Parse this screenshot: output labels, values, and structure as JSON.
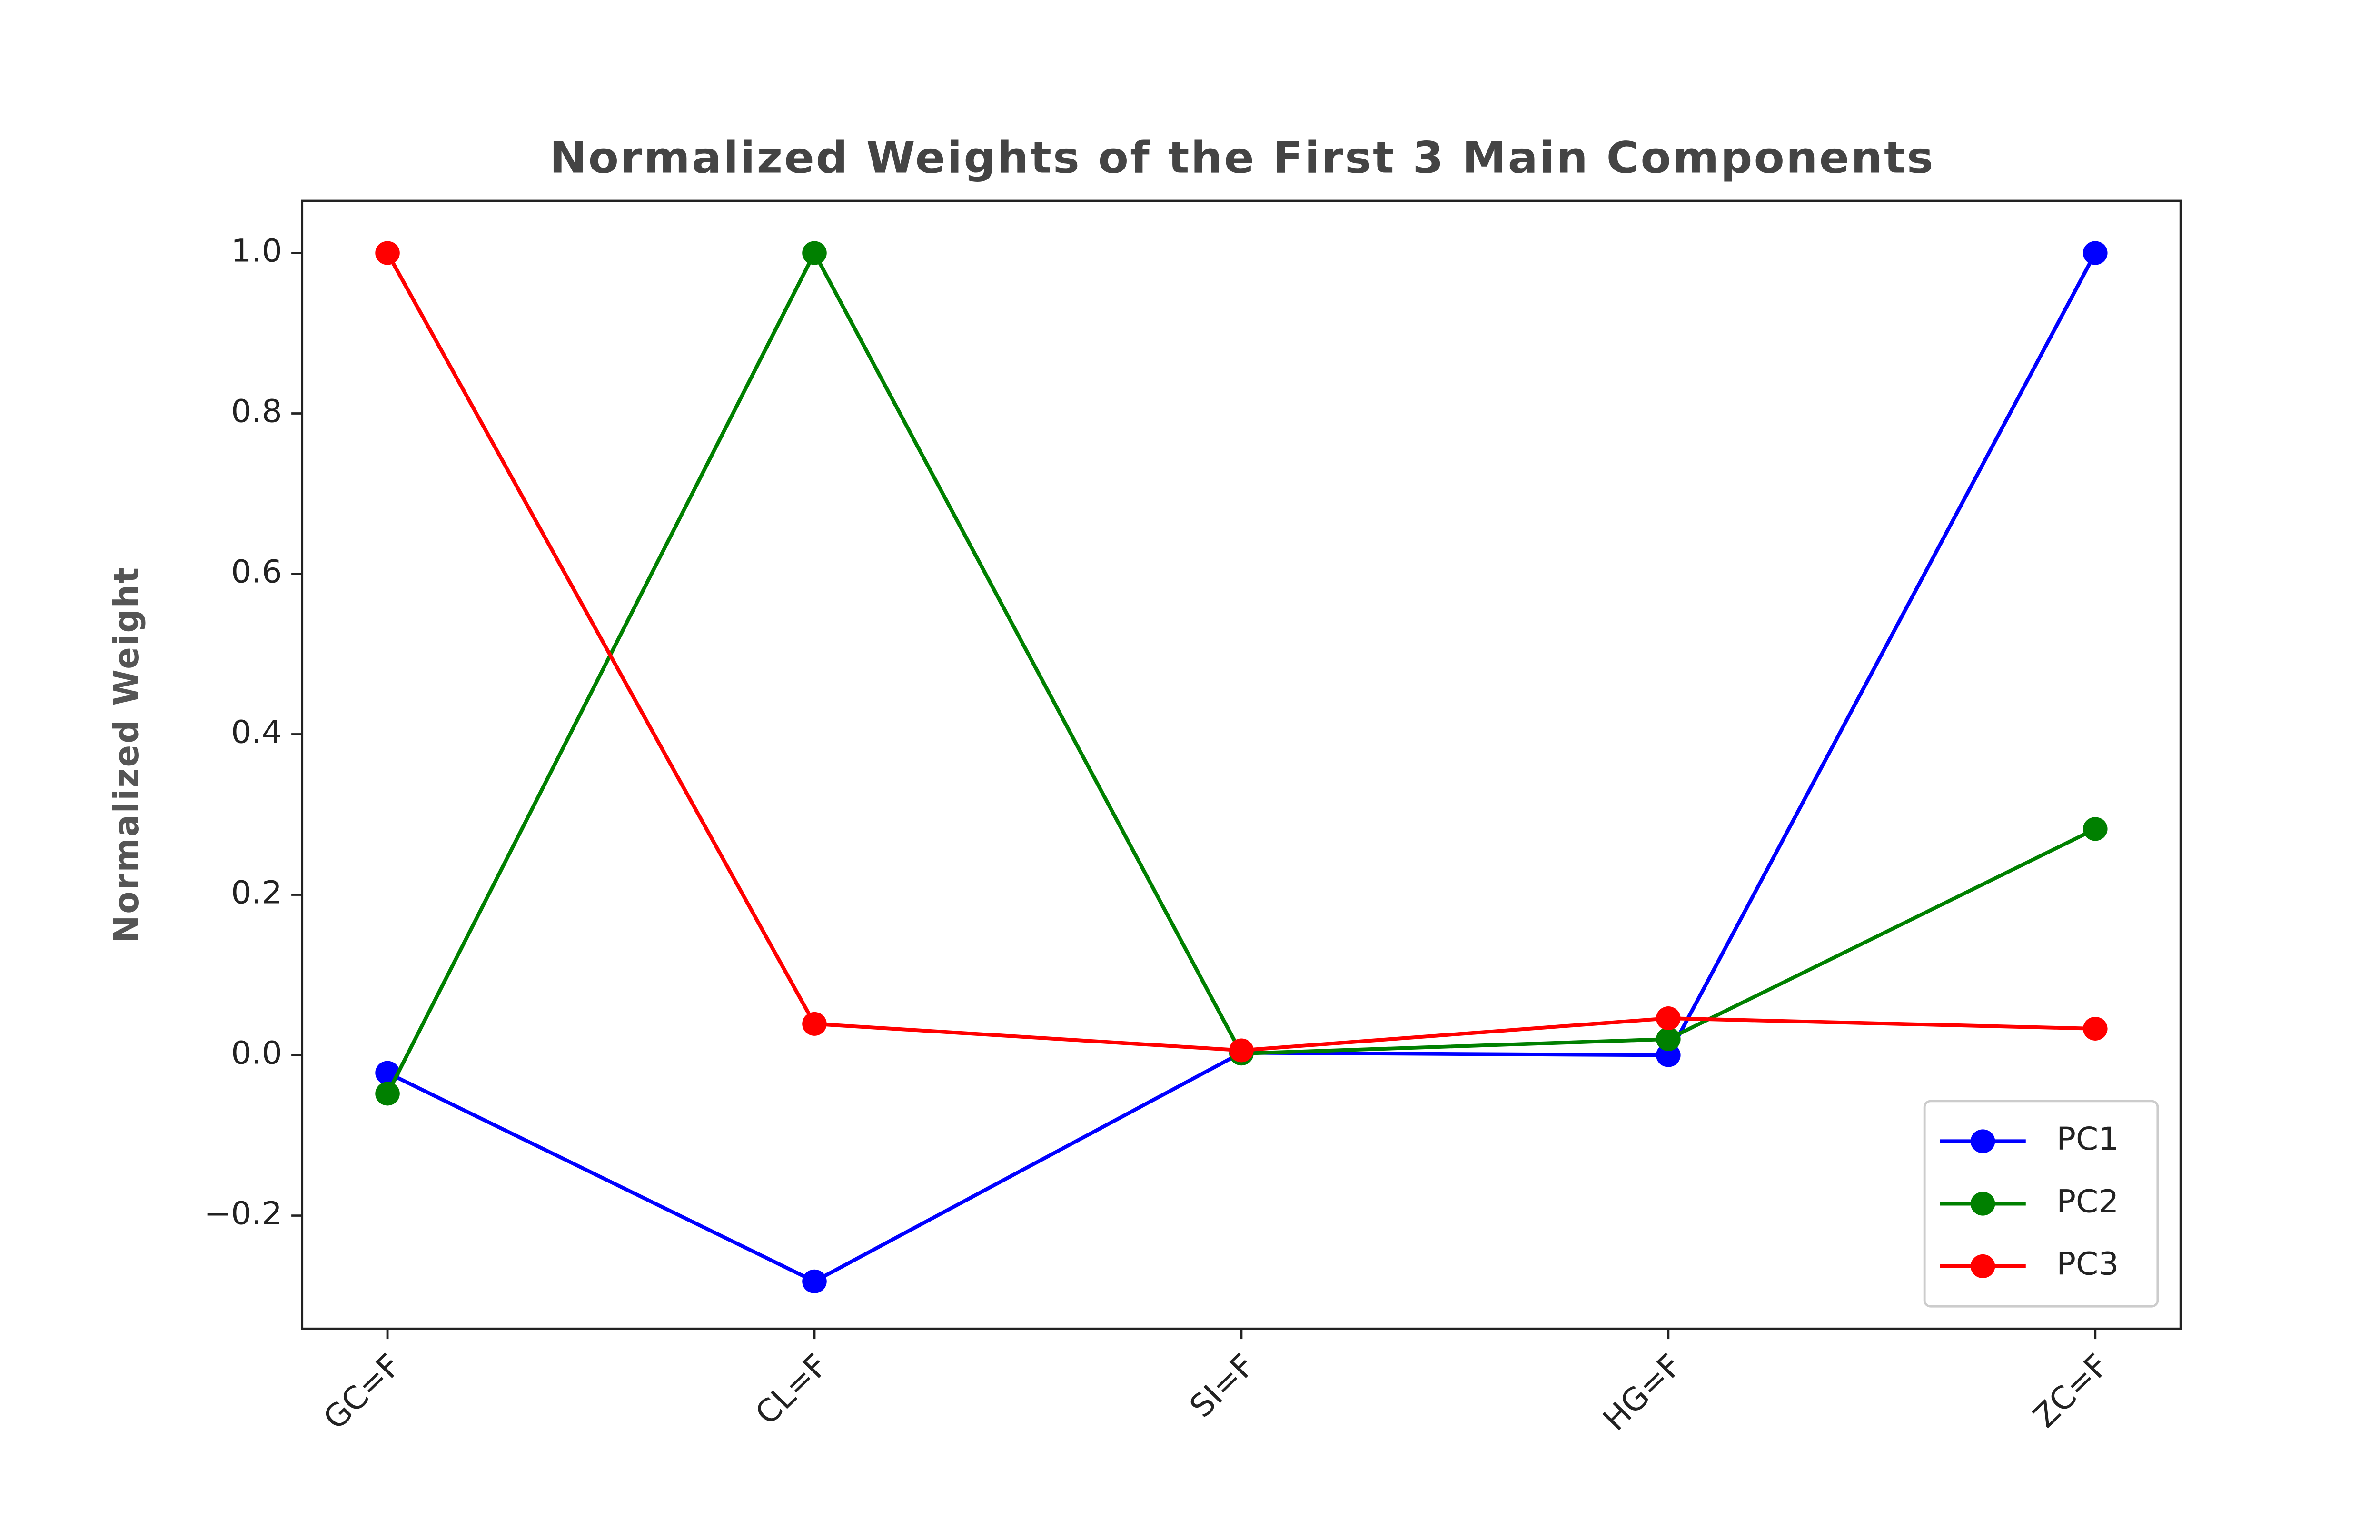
{
  "chart_data": {
    "type": "line",
    "title": "Normalized Weights of the First 3 Main Components",
    "y_label": "Normalized Weight",
    "categories": [
      "GC=F",
      "CL=F",
      "SI=F",
      "HG=F",
      "ZC=F"
    ],
    "series": [
      {
        "name": "PC1",
        "color": "#0000ff",
        "values": [
          -0.022,
          -0.282,
          0.003,
          0.0,
          1.0
        ]
      },
      {
        "name": "PC2",
        "color": "#008000",
        "values": [
          -0.048,
          1.0,
          0.002,
          0.02,
          0.282
        ]
      },
      {
        "name": "PC3",
        "color": "#ff0000",
        "values": [
          1.0,
          0.039,
          0.006,
          0.046,
          0.033
        ]
      }
    ],
    "ylim": [
      -0.341,
      1.065
    ],
    "yticks": [
      {
        "value": -0.2,
        "label": "−0.2"
      },
      {
        "value": 0,
        "label": "0.0"
      },
      0.2,
      0.4,
      0.6,
      0.8,
      {
        "value": 1,
        "label": "1.0"
      }
    ],
    "grid": false,
    "legend": "lower right"
  }
}
